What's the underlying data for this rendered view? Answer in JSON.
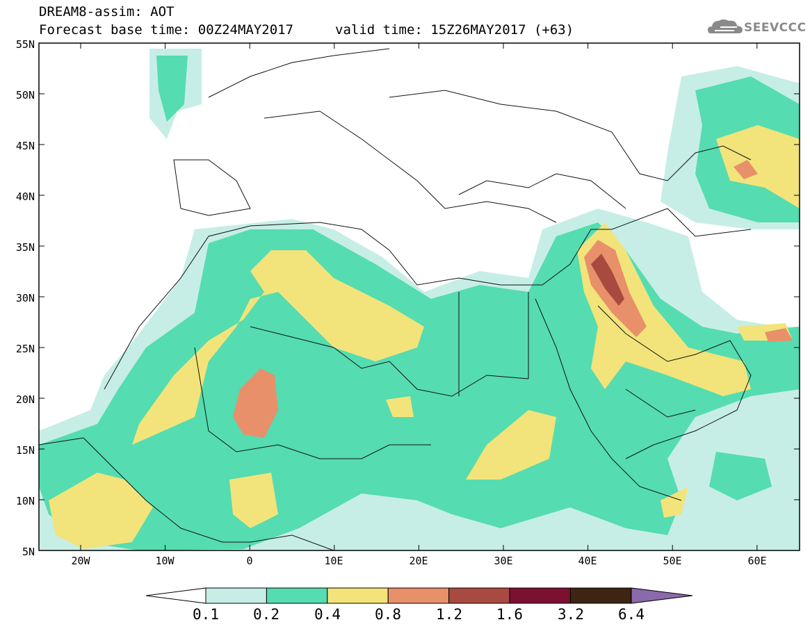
{
  "header": {
    "title": "DREAM8-assim: AOT",
    "base_time": "Forecast base time: 00Z24MAY2017",
    "valid_time": "valid time: 15Z26MAY2017 (+63)"
  },
  "logo": {
    "text": "SEEVCCC",
    "icon": "cloud-icon"
  },
  "map": {
    "lat_ticks": [
      "55N",
      "50N",
      "45N",
      "40N",
      "35N",
      "30N",
      "25N",
      "20N",
      "15N",
      "10N",
      "5N"
    ],
    "lon_ticks": [
      "20W",
      "10W",
      "0",
      "10E",
      "20E",
      "30E",
      "40E",
      "50E",
      "60E"
    ]
  },
  "colorbar": {
    "levels": [
      "0.1",
      "0.2",
      "0.4",
      "0.8",
      "1.2",
      "1.6",
      "3.2",
      "6.4"
    ],
    "colors": [
      "#c6eee6",
      "#55dcb0",
      "#f2e47a",
      "#e8906a",
      "#a84a40",
      "#7c1030",
      "#3e2412",
      "#8a6aaa"
    ]
  },
  "colors": {
    "c1": "#c6eee6",
    "c2": "#55dcb0",
    "c3": "#f2e47a",
    "c4": "#e8906a",
    "c5": "#a84a40"
  }
}
